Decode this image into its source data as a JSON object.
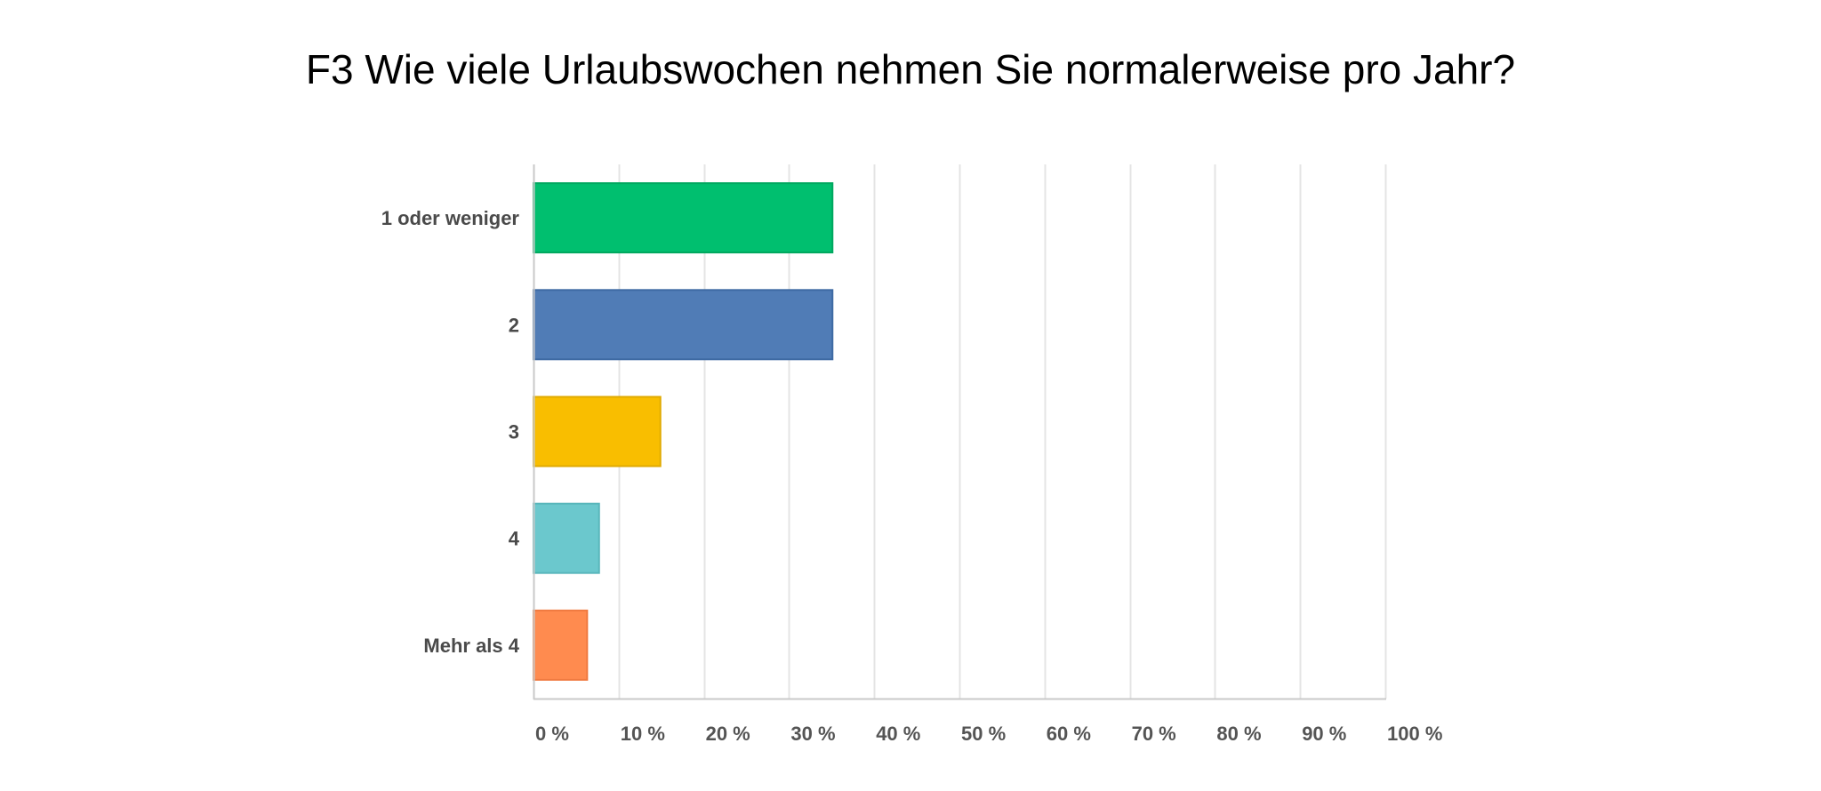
{
  "chart_data": {
    "type": "bar",
    "orientation": "horizontal",
    "title": "F3 Wie viele Urlaubswochen nehmen Sie normalerweise pro Jahr?",
    "xlabel": "",
    "ylabel": "",
    "categories": [
      "1 oder weniger",
      "2",
      "3",
      "4",
      "Mehr als 4"
    ],
    "values": [
      35.1,
      35.1,
      14.9,
      7.7,
      6.3
    ],
    "colors": [
      "#00bf6f",
      "#507cb6",
      "#f9be00",
      "#6bc8cd",
      "#ff8b4f"
    ],
    "border_colors": [
      "#00a85f",
      "#3e6aa3",
      "#e0aa00",
      "#58b6bb",
      "#f07a40"
    ],
    "xlim": [
      0,
      100
    ],
    "x_ticks": [
      0,
      10,
      20,
      30,
      40,
      50,
      60,
      70,
      80,
      90,
      100
    ],
    "x_tick_labels": [
      "0 %",
      "10 %",
      "20 %",
      "30 %",
      "40 %",
      "50 %",
      "60 %",
      "70 %",
      "80 %",
      "90 %",
      "100 %"
    ],
    "grid": true,
    "legend": "none"
  }
}
